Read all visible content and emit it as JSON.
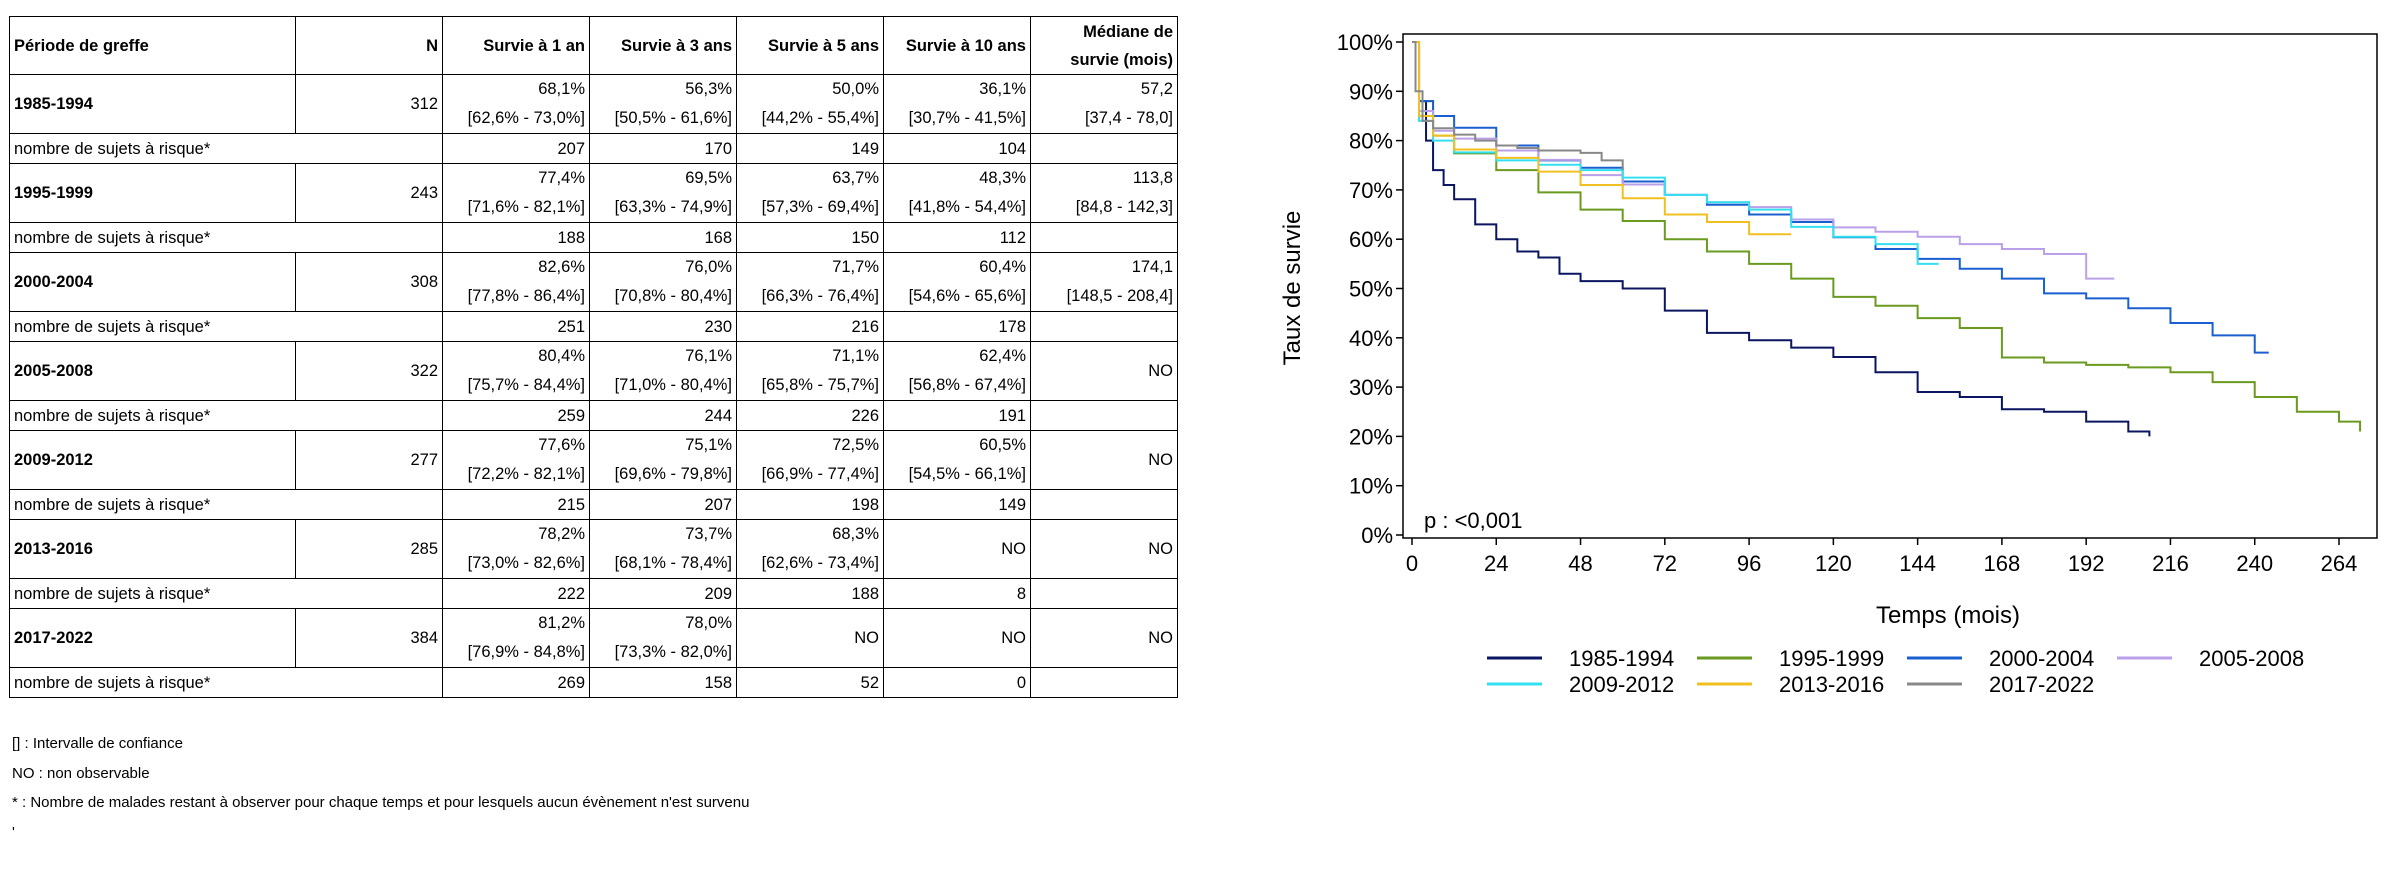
{
  "table": {
    "headers": {
      "period": "Période de greffe",
      "n": "N",
      "s1": "Survie à 1 an",
      "s3": "Survie à 3 ans",
      "s5": "Survie à 5 ans",
      "s10": "Survie à 10 ans",
      "median_l1": "Médiane de",
      "median_l2": "survie (mois)"
    },
    "rows": [
      {
        "period": "1985-1994",
        "n": "312",
        "s1": "68,1%",
        "s1_ci": "[62,6% - 73,0%]",
        "s3": "56,3%",
        "s3_ci": "[50,5% - 61,6%]",
        "s5": "50,0%",
        "s5_ci": "[44,2% - 55,4%]",
        "s10": "36,1%",
        "s10_ci": "[30,7% - 41,5%]",
        "median": "57,2",
        "median_ci": "[37,4 - 78,0]",
        "risk_label": "nombre de sujets à risque*",
        "r1": "207",
        "r3": "170",
        "r5": "149",
        "r10": "104"
      },
      {
        "period": "1995-1999",
        "n": "243",
        "s1": "77,4%",
        "s1_ci": "[71,6% - 82,1%]",
        "s3": "69,5%",
        "s3_ci": "[63,3% - 74,9%]",
        "s5": "63,7%",
        "s5_ci": "[57,3% - 69,4%]",
        "s10": "48,3%",
        "s10_ci": "[41,8% - 54,4%]",
        "median": "113,8",
        "median_ci": "[84,8 - 142,3]",
        "risk_label": "nombre de sujets à risque*",
        "r1": "188",
        "r3": "168",
        "r5": "150",
        "r10": "112"
      },
      {
        "period": "2000-2004",
        "n": "308",
        "s1": "82,6%",
        "s1_ci": "[77,8% - 86,4%]",
        "s3": "76,0%",
        "s3_ci": "[70,8% - 80,4%]",
        "s5": "71,7%",
        "s5_ci": "[66,3% - 76,4%]",
        "s10": "60,4%",
        "s10_ci": "[54,6% - 65,6%]",
        "median": "174,1",
        "median_ci": "[148,5 - 208,4]",
        "risk_label": "nombre de sujets à risque*",
        "r1": "251",
        "r3": "230",
        "r5": "216",
        "r10": "178"
      },
      {
        "period": "2005-2008",
        "n": "322",
        "s1": "80,4%",
        "s1_ci": "[75,7% - 84,4%]",
        "s3": "76,1%",
        "s3_ci": "[71,0% - 80,4%]",
        "s5": "71,1%",
        "s5_ci": "[65,8% - 75,7%]",
        "s10": "62,4%",
        "s10_ci": "[56,8% - 67,4%]",
        "median": "NO",
        "median_ci": "",
        "risk_label": "nombre de sujets à risque*",
        "r1": "259",
        "r3": "244",
        "r5": "226",
        "r10": "191"
      },
      {
        "period": "2009-2012",
        "n": "277",
        "s1": "77,6%",
        "s1_ci": "[72,2% - 82,1%]",
        "s3": "75,1%",
        "s3_ci": "[69,6% - 79,8%]",
        "s5": "72,5%",
        "s5_ci": "[66,9% - 77,4%]",
        "s10": "60,5%",
        "s10_ci": "[54,5% - 66,1%]",
        "median": "NO",
        "median_ci": "",
        "risk_label": "nombre de sujets à risque*",
        "r1": "215",
        "r3": "207",
        "r5": "198",
        "r10": "149"
      },
      {
        "period": "2013-2016",
        "n": "285",
        "s1": "78,2%",
        "s1_ci": "[73,0% - 82,6%]",
        "s3": "73,7%",
        "s3_ci": "[68,1% - 78,4%]",
        "s5": "68,3%",
        "s5_ci": "[62,6% - 73,4%]",
        "s10": "NO",
        "s10_ci": "",
        "median": "NO",
        "median_ci": "",
        "risk_label": "nombre de sujets à risque*",
        "r1": "222",
        "r3": "209",
        "r5": "188",
        "r10": "8"
      },
      {
        "period": "2017-2022",
        "n": "384",
        "s1": "81,2%",
        "s1_ci": "[76,9% - 84,8%]",
        "s3": "78,0%",
        "s3_ci": "[73,3% - 82,0%]",
        "s5": "NO",
        "s5_ci": "",
        "s10": "NO",
        "s10_ci": "",
        "median": "NO",
        "median_ci": "",
        "risk_label": "nombre de sujets à risque*",
        "r1": "269",
        "r3": "158",
        "r5": "52",
        "r10": "0"
      }
    ]
  },
  "footnotes": [
    "[] : Intervalle de confiance",
    "NO : non observable",
    "* : Nombre de malades restant à observer pour chaque temps et pour lesquels aucun évènement n'est survenu",
    "'"
  ],
  "chart_data": {
    "type": "line",
    "title": "",
    "xlabel": "Temps (mois)",
    "ylabel": "Taux de survie",
    "xlim": [
      0,
      276
    ],
    "ylim": [
      0,
      100
    ],
    "xticks": [
      0,
      24,
      48,
      72,
      96,
      120,
      144,
      168,
      192,
      216,
      240,
      264
    ],
    "yticks": [
      0,
      10,
      20,
      30,
      40,
      50,
      60,
      70,
      80,
      90,
      100
    ],
    "ytick_labels": [
      "0%",
      "10%",
      "20%",
      "30%",
      "40%",
      "50%",
      "60%",
      "70%",
      "80%",
      "90%",
      "100%"
    ],
    "annotation": "p : <0,001",
    "grid": false,
    "legend_position": "bottom",
    "series": [
      {
        "name": "1985-1994",
        "color": "#0b1560",
        "x": [
          0,
          2,
          4,
          6,
          9,
          12,
          18,
          24,
          30,
          36,
          42,
          48,
          60,
          72,
          84,
          96,
          108,
          120,
          132,
          144,
          156,
          168,
          180,
          192,
          204,
          210
        ],
        "y": [
          100,
          88,
          80,
          74,
          71,
          68.1,
          63,
          60,
          57.5,
          56.3,
          53,
          51.5,
          50,
          45.5,
          41,
          39.5,
          38,
          36.1,
          33,
          29,
          28,
          25.5,
          25,
          23,
          21,
          20
        ]
      },
      {
        "name": "1995-1999",
        "color": "#6a9a1f",
        "x": [
          0,
          2,
          6,
          12,
          24,
          36,
          48,
          60,
          72,
          84,
          96,
          108,
          120,
          132,
          144,
          156,
          168,
          180,
          192,
          204,
          216,
          228,
          240,
          252,
          264,
          270
        ],
        "y": [
          100,
          88,
          81,
          77.4,
          74,
          69.5,
          66,
          63.7,
          60,
          57.5,
          55,
          52,
          48.3,
          46.5,
          44,
          42,
          36,
          35,
          34.5,
          34,
          33,
          31,
          28,
          25,
          23,
          21
        ]
      },
      {
        "name": "2000-2004",
        "color": "#1a5fd0",
        "x": [
          0,
          2,
          6,
          12,
          24,
          36,
          48,
          60,
          72,
          84,
          96,
          108,
          120,
          132,
          144,
          156,
          168,
          180,
          192,
          204,
          216,
          228,
          240,
          244
        ],
        "y": [
          100,
          88,
          85,
          82.6,
          79,
          76,
          74.5,
          71.7,
          69,
          67,
          65,
          63.5,
          60.4,
          58,
          56,
          54,
          52,
          49,
          48,
          46,
          43,
          40.5,
          37,
          37
        ]
      },
      {
        "name": "2005-2008",
        "color": "#b9a0e8",
        "x": [
          0,
          2,
          6,
          12,
          24,
          36,
          48,
          60,
          72,
          84,
          96,
          108,
          120,
          132,
          144,
          156,
          168,
          180,
          192,
          200
        ],
        "y": [
          100,
          86,
          82,
          80.4,
          78,
          76.1,
          73,
          71.1,
          69,
          67.5,
          66.5,
          64,
          62.4,
          61.5,
          60.5,
          59,
          58,
          57,
          52,
          52
        ]
      },
      {
        "name": "2009-2012",
        "color": "#33e0f0",
        "x": [
          0,
          2,
          6,
          12,
          24,
          36,
          48,
          60,
          72,
          84,
          96,
          108,
          120,
          132,
          144,
          150
        ],
        "y": [
          100,
          84,
          80,
          77.6,
          76,
          75.1,
          74,
          72.5,
          69,
          67.5,
          66,
          62.5,
          60.5,
          59,
          55,
          55
        ]
      },
      {
        "name": "2013-2016",
        "color": "#f0c020",
        "x": [
          0,
          2,
          6,
          12,
          24,
          36,
          48,
          60,
          72,
          84,
          96,
          108
        ],
        "y": [
          100,
          85,
          81,
          78.2,
          76.5,
          73.7,
          71,
          68.3,
          65,
          63.5,
          61,
          61
        ]
      },
      {
        "name": "2017-2022",
        "color": "#888888",
        "x": [
          0,
          1,
          3,
          6,
          12,
          18,
          24,
          30,
          36,
          42,
          48,
          54,
          60
        ],
        "y": [
          100,
          90,
          84,
          82.5,
          81.2,
          80,
          79,
          78.5,
          78,
          78,
          77.5,
          76,
          74
        ]
      }
    ]
  }
}
